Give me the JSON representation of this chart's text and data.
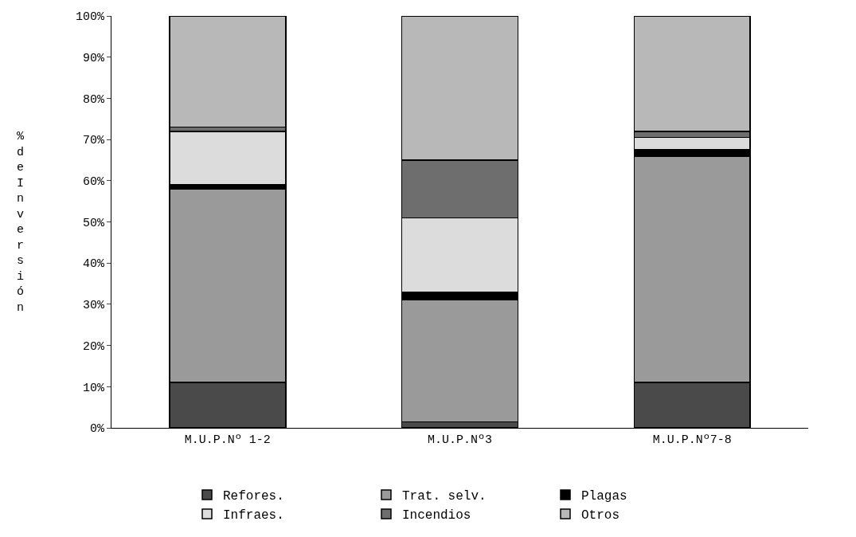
{
  "chart_data": {
    "type": "bar",
    "stacked": true,
    "ylabel": "% de Inversión",
    "categories": [
      "M.U.P.Nº 1-2",
      "M.U.P.Nº3",
      "M.U.P.Nº7-8"
    ],
    "series": [
      {
        "name": "Refores.",
        "color": "#4a4a4a",
        "values": [
          11,
          1.5,
          11
        ]
      },
      {
        "name": "Trat. selv.",
        "color": "#9a9a9a",
        "values": [
          47,
          29.5,
          55
        ]
      },
      {
        "name": "Plagas",
        "color": "#000000",
        "values": [
          1,
          2,
          1.5
        ]
      },
      {
        "name": "Infraes.",
        "color": "#dcdcdc",
        "values": [
          13,
          18,
          3
        ]
      },
      {
        "name": "Incendios",
        "color": "#6e6e6e",
        "values": [
          1,
          14,
          1.5
        ]
      },
      {
        "name": "Otros",
        "color": "#b8b8b8",
        "values": [
          27,
          35,
          28
        ]
      }
    ],
    "ylim": [
      0,
      100
    ],
    "yticks": [
      {
        "value": 0,
        "label": "0%"
      },
      {
        "value": 10,
        "label": "10%"
      },
      {
        "value": 20,
        "label": "20%"
      },
      {
        "value": 30,
        "label": "30%"
      },
      {
        "value": 40,
        "label": "40%"
      },
      {
        "value": 50,
        "label": "50%"
      },
      {
        "value": 60,
        "label": "60%"
      },
      {
        "value": 70,
        "label": "70%"
      },
      {
        "value": 80,
        "label": "80%"
      },
      {
        "value": 90,
        "label": "90%"
      },
      {
        "value": 100,
        "label": "100%"
      }
    ],
    "legend": "bottom"
  }
}
